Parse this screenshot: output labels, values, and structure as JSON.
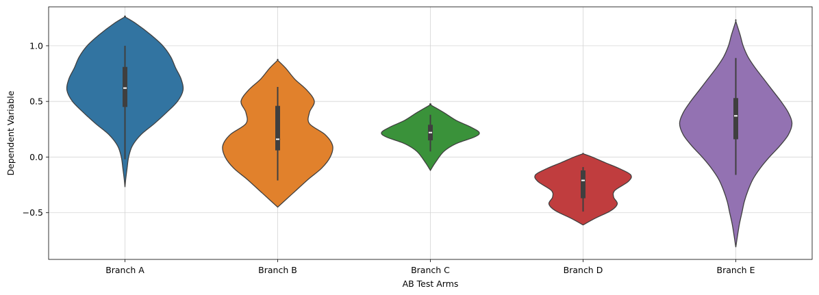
{
  "chart_data": {
    "type": "violin",
    "title": "",
    "xlabel": "AB Test Arms",
    "ylabel": "Dependent Variable",
    "ylim": [
      -0.92,
      1.35
    ],
    "yticks": [
      -0.5,
      0.0,
      0.5,
      1.0
    ],
    "ytick_labels": [
      "−0.5",
      "0.0",
      "0.5",
      "1.0"
    ],
    "grid": true,
    "legend": "none",
    "categories": [
      "Branch A",
      "Branch B",
      "Branch C",
      "Branch D",
      "Branch E"
    ],
    "colors": [
      "#3274a1",
      "#e1812c",
      "#3a923a",
      "#c03d3e",
      "#9372b2"
    ],
    "violins": [
      {
        "name": "Branch A",
        "y_min": -0.27,
        "y_max": 1.26,
        "q1": 0.45,
        "median": 0.62,
        "q3": 0.81,
        "whisker_low": -0.02,
        "whisker_high": 1.0,
        "profile": [
          [
            -0.27,
            0.0
          ],
          [
            -0.2,
            0.012
          ],
          [
            -0.1,
            0.035
          ],
          [
            0.0,
            0.06
          ],
          [
            0.1,
            0.12
          ],
          [
            0.2,
            0.26
          ],
          [
            0.3,
            0.48
          ],
          [
            0.4,
            0.68
          ],
          [
            0.5,
            0.86
          ],
          [
            0.6,
            0.95
          ],
          [
            0.7,
            0.92
          ],
          [
            0.8,
            0.83
          ],
          [
            0.9,
            0.75
          ],
          [
            1.0,
            0.62
          ],
          [
            1.1,
            0.42
          ],
          [
            1.2,
            0.18
          ],
          [
            1.26,
            0.0
          ]
        ]
      },
      {
        "name": "Branch B",
        "y_min": -0.45,
        "y_max": 0.87,
        "q1": 0.06,
        "median": 0.16,
        "q3": 0.46,
        "whisker_low": -0.21,
        "whisker_high": 0.63,
        "profile": [
          [
            -0.45,
            0.0
          ],
          [
            -0.4,
            0.1
          ],
          [
            -0.3,
            0.3
          ],
          [
            -0.2,
            0.5
          ],
          [
            -0.1,
            0.72
          ],
          [
            0.0,
            0.86
          ],
          [
            0.1,
            0.9
          ],
          [
            0.2,
            0.78
          ],
          [
            0.3,
            0.52
          ],
          [
            0.4,
            0.52
          ],
          [
            0.5,
            0.6
          ],
          [
            0.6,
            0.48
          ],
          [
            0.7,
            0.28
          ],
          [
            0.8,
            0.13
          ],
          [
            0.87,
            0.0
          ]
        ]
      },
      {
        "name": "Branch C",
        "y_min": -0.12,
        "y_max": 0.47,
        "q1": 0.15,
        "median": 0.22,
        "q3": 0.29,
        "whisker_low": 0.05,
        "whisker_high": 0.38,
        "profile": [
          [
            -0.12,
            0.0
          ],
          [
            -0.05,
            0.08
          ],
          [
            0.05,
            0.22
          ],
          [
            0.12,
            0.42
          ],
          [
            0.18,
            0.72
          ],
          [
            0.22,
            0.8
          ],
          [
            0.27,
            0.66
          ],
          [
            0.33,
            0.42
          ],
          [
            0.4,
            0.22
          ],
          [
            0.47,
            0.0
          ]
        ]
      },
      {
        "name": "Branch D",
        "y_min": -0.61,
        "y_max": 0.03,
        "q1": -0.37,
        "median": -0.21,
        "q3": -0.12,
        "whisker_low": -0.49,
        "whisker_high": -0.09,
        "profile": [
          [
            -0.61,
            0.0
          ],
          [
            -0.55,
            0.2
          ],
          [
            -0.48,
            0.46
          ],
          [
            -0.42,
            0.56
          ],
          [
            -0.36,
            0.5
          ],
          [
            -0.3,
            0.52
          ],
          [
            -0.22,
            0.74
          ],
          [
            -0.16,
            0.78
          ],
          [
            -0.1,
            0.58
          ],
          [
            -0.05,
            0.36
          ],
          [
            0.0,
            0.15
          ],
          [
            0.03,
            0.0
          ]
        ]
      },
      {
        "name": "Branch E",
        "y_min": -0.81,
        "y_max": 1.22,
        "q1": 0.16,
        "median": 0.37,
        "q3": 0.53,
        "whisker_low": -0.16,
        "whisker_high": 0.89,
        "profile": [
          [
            -0.81,
            0.0
          ],
          [
            -0.7,
            0.03
          ],
          [
            -0.6,
            0.06
          ],
          [
            -0.5,
            0.1
          ],
          [
            -0.4,
            0.14
          ],
          [
            -0.3,
            0.2
          ],
          [
            -0.2,
            0.28
          ],
          [
            -0.1,
            0.4
          ],
          [
            0.0,
            0.55
          ],
          [
            0.1,
            0.72
          ],
          [
            0.2,
            0.86
          ],
          [
            0.3,
            0.92
          ],
          [
            0.4,
            0.86
          ],
          [
            0.5,
            0.74
          ],
          [
            0.6,
            0.6
          ],
          [
            0.7,
            0.46
          ],
          [
            0.8,
            0.32
          ],
          [
            0.9,
            0.2
          ],
          [
            1.0,
            0.12
          ],
          [
            1.1,
            0.07
          ],
          [
            1.22,
            0.0
          ]
        ]
      }
    ]
  }
}
